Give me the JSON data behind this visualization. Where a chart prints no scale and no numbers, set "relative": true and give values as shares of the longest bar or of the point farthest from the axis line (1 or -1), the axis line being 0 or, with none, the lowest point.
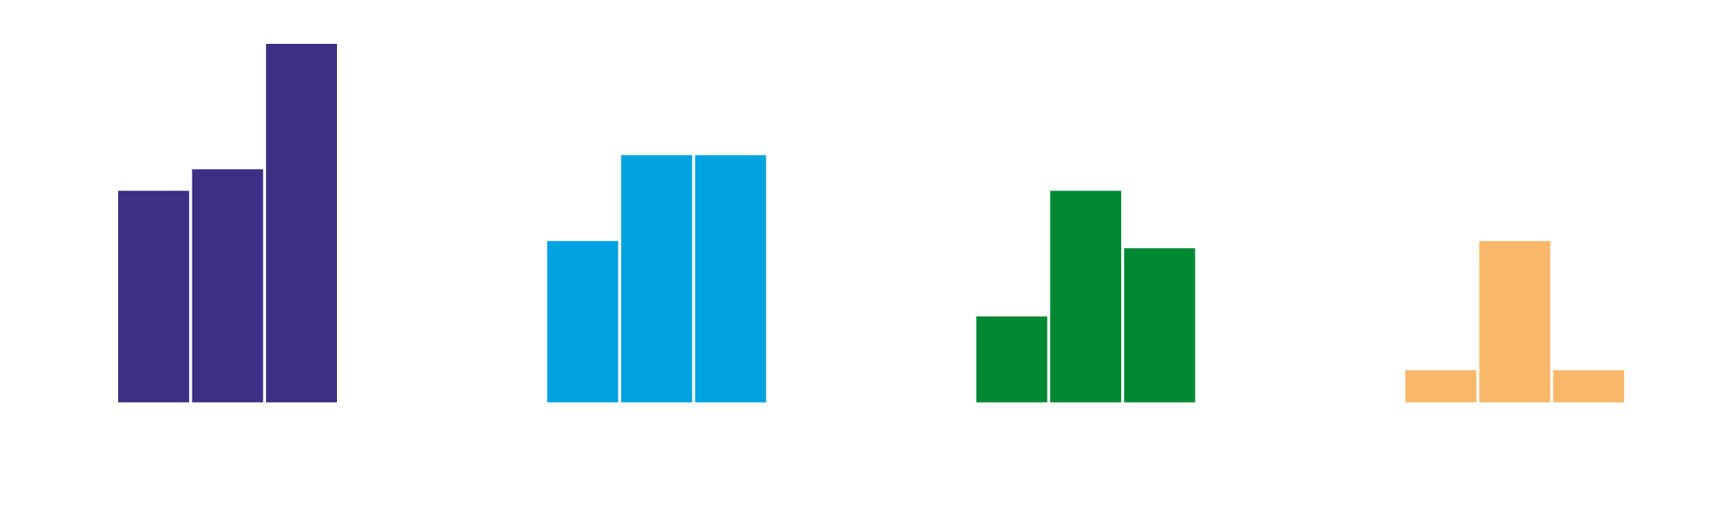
{
  "chart_data": {
    "type": "bar",
    "relative": true,
    "categories": [
      null,
      null,
      null,
      null
    ],
    "series": [
      {
        "colors": [
          "#3c2f84",
          "#00a2e0",
          "#008833",
          "#f9b769"
        ],
        "values": [
          0.59,
          0.45,
          0.24,
          0.09
        ]
      },
      {
        "colors": [
          "#3c2f84",
          "#00a2e0",
          "#008833",
          "#f9b769"
        ],
        "values": [
          0.65,
          0.69,
          0.59,
          0.45
        ]
      },
      {
        "colors": [
          "#3c2f84",
          "#00a2e0",
          "#008833",
          "#f9b769"
        ],
        "values": [
          1,
          0.69,
          0.43,
          0.09
        ]
      }
    ],
    "legend": false,
    "grid": false
  }
}
